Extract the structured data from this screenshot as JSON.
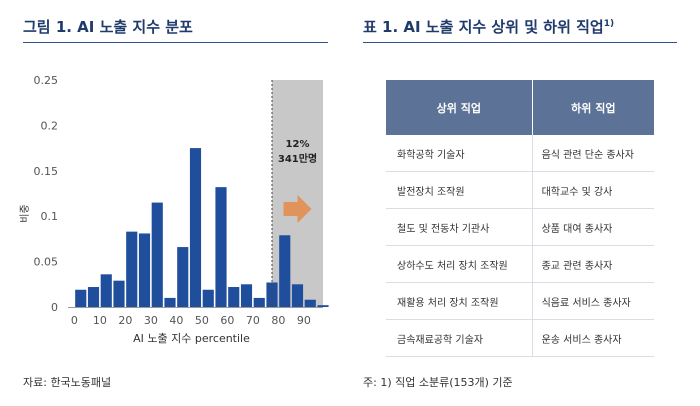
{
  "left": {
    "figure_title": "그림 1. AI 노출 지수 분포",
    "source": "자료: 한국노동패널"
  },
  "right": {
    "table_title": "표 1. AI 노출 지수 상위 및 하위 직업",
    "table_title_sup": "1)",
    "headers": [
      "상위 직업",
      "하위 직업"
    ],
    "rows": [
      [
        "화학공학 기술자",
        "음식 관련 단순 종사자"
      ],
      [
        "발전장치 조작원",
        "대학교수 및 강사"
      ],
      [
        "철도 및 전동차 기관사",
        "상품 대여 종사자"
      ],
      [
        "상하수도 처리 장치 조작원",
        "종교 관련 종사자"
      ],
      [
        "재활용 처리 장치 조작원",
        "식음료 서비스 종사자"
      ],
      [
        "금속재료공학 기술자",
        "운송 서비스 종사자"
      ]
    ],
    "note": "주: 1) 직업 소분류(153개) 기준"
  },
  "chart_data": {
    "type": "bar",
    "xlabel": "AI 노출 지수 percentile",
    "ylabel": "비중",
    "ylim": [
      0,
      0.25
    ],
    "yticks": [
      0,
      0.05,
      0.1,
      0.15,
      0.2,
      0.25
    ],
    "ytick_labels": [
      "0",
      "0.05",
      "0.1",
      "0.15",
      "0.2",
      "0.25"
    ],
    "xticks": [
      0,
      10,
      20,
      30,
      40,
      50,
      60,
      70,
      80,
      90
    ],
    "xlim": [
      -2.5,
      97.5
    ],
    "bin_width": 5,
    "bins_start": [
      0,
      5,
      10,
      15,
      20,
      25,
      30,
      35,
      40,
      45,
      50,
      55,
      60,
      65,
      70,
      75,
      80,
      85,
      90,
      95
    ],
    "values": [
      0.019,
      0.022,
      0.036,
      0.029,
      0.083,
      0.081,
      0.115,
      0.01,
      0.066,
      0.175,
      0.019,
      0.132,
      0.022,
      0.025,
      0.01,
      0.027,
      0.079,
      0.025,
      0.008,
      0.002
    ],
    "highlight_from": 77.5,
    "annotation_line1": "12%",
    "annotation_line2": "341만명",
    "colors": {
      "bar": "#1f4e9c",
      "shade": "#c8c8c8",
      "arrow": "#e0935a"
    }
  }
}
